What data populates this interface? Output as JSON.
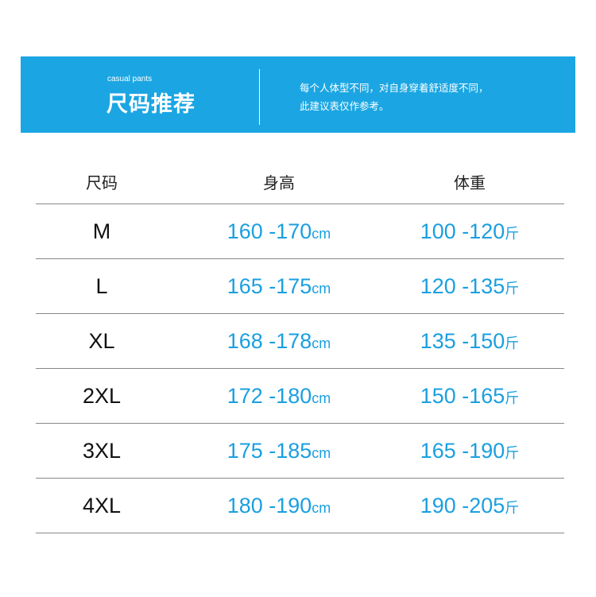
{
  "banner": {
    "subtitle": "casual pants",
    "title": "尺码推荐",
    "note_line1": "每个人体型不同，对自身穿着舒适度不同，",
    "note_line2": "此建议表仅作参考。"
  },
  "table": {
    "headers": [
      "尺码",
      "身高",
      "体重"
    ],
    "height_unit": "cm",
    "weight_unit": "斤",
    "rows": [
      {
        "size": "M",
        "height": "160 -170",
        "weight": "100 -120"
      },
      {
        "size": "L",
        "height": "165 -175",
        "weight": "120 -135"
      },
      {
        "size": "XL",
        "height": "168 -178",
        "weight": "135 -150"
      },
      {
        "size": "2XL",
        "height": "172 -180",
        "weight": "150 -165"
      },
      {
        "size": "3XL",
        "height": "175 -185",
        "weight": "165 -190"
      },
      {
        "size": "4XL",
        "height": "180 -190",
        "weight": "190 -205"
      }
    ]
  },
  "colors": {
    "accent": "#1ba6e3",
    "value_text": "#1a9fe0"
  }
}
